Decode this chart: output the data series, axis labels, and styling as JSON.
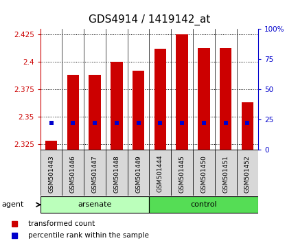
{
  "title": "GDS4914 / 1419142_at",
  "samples": [
    "GSM501443",
    "GSM501446",
    "GSM501447",
    "GSM501448",
    "GSM501449",
    "GSM501444",
    "GSM501445",
    "GSM501450",
    "GSM501451",
    "GSM501452"
  ],
  "transformed_count": [
    2.328,
    2.388,
    2.388,
    2.4,
    2.392,
    2.412,
    2.425,
    2.413,
    2.413,
    2.363
  ],
  "percentile_values": [
    2.344,
    2.344,
    2.344,
    2.344,
    2.344,
    2.344,
    2.344,
    2.344,
    2.344,
    2.344
  ],
  "ylim_left": [
    2.32,
    2.43
  ],
  "ylim_right": [
    0,
    100
  ],
  "yticks_left": [
    2.325,
    2.35,
    2.375,
    2.4,
    2.425
  ],
  "yticks_right": [
    0,
    25,
    50,
    75,
    100
  ],
  "ytick_labels_left": [
    "2.325",
    "2.35",
    "2.375",
    "2.4",
    "2.425"
  ],
  "ytick_labels_right": [
    "0",
    "25",
    "50",
    "75",
    "100%"
  ],
  "bar_color": "#cc0000",
  "bar_width": 0.55,
  "percentile_color": "#0000cc",
  "baseline": 2.32,
  "arsenate_color": "#bbffbb",
  "control_color": "#55dd55",
  "group_label_arsenate": "arsenate",
  "group_label_control": "control",
  "agent_label": "agent",
  "legend_bar_label": "transformed count",
  "legend_percentile_label": "percentile rank within the sample",
  "left_axis_color": "#cc0000",
  "right_axis_color": "#0000cc",
  "title_fontsize": 11,
  "tick_fontsize": 7.5
}
